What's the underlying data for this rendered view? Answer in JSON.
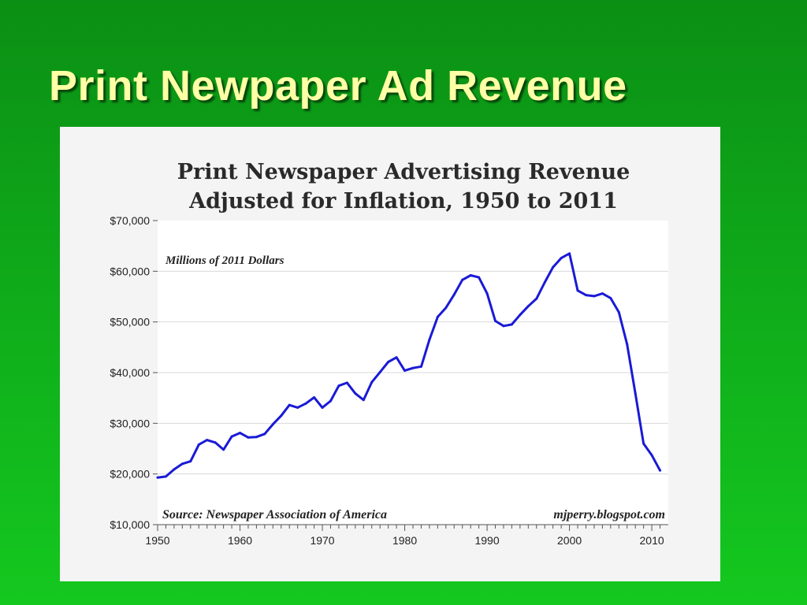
{
  "slide": {
    "title": "Print Newpaper Ad Revenue",
    "background": "#0fa91a",
    "title_color": "#ffffa6"
  },
  "chart_data": {
    "type": "line",
    "title": "Print Newspaper Advertising Revenue",
    "subtitle": "Adjusted for Inflation, 1950 to 2011",
    "units_note": "Millions of 2011 Dollars",
    "source": "Source: Newspaper Association of America",
    "credit": "mjperry.blogspot.com",
    "xlim": [
      1950,
      2012
    ],
    "ylim": [
      10000,
      70000
    ],
    "x_ticks": [
      "1950",
      "1960",
      "1970",
      "1980",
      "1990",
      "2000",
      "2010"
    ],
    "y_ticks": [
      "$70,000",
      "$60,000",
      "$50,000",
      "$40,000",
      "$30,000",
      "$20,000",
      "$10,000"
    ],
    "grid": true,
    "line_color": "#1a1ad6",
    "series": [
      {
        "x": [
          1950,
          1951,
          1952,
          1953,
          1954,
          1955,
          1956,
          1957,
          1958,
          1959,
          1960,
          1961,
          1962,
          1963,
          1964,
          1965,
          1966,
          1967,
          1968,
          1969,
          1970,
          1971,
          1972,
          1973,
          1974,
          1975,
          1976,
          1977,
          1978,
          1979,
          1980,
          1981,
          1982,
          1983,
          1984,
          1985,
          1986,
          1987,
          1988,
          1989,
          1990,
          1991,
          1992,
          1993,
          1994,
          1995,
          1996,
          1997,
          1998,
          1999,
          2000,
          2001,
          2002,
          2003,
          2004,
          2005,
          2006,
          2007,
          2008,
          2009,
          2010,
          2011
        ],
        "values": [
          19300,
          19500,
          20900,
          22000,
          22500,
          25800,
          26700,
          26200,
          24800,
          27400,
          28100,
          27200,
          27300,
          27900,
          29800,
          31500,
          33600,
          33100,
          33900,
          35100,
          33100,
          34400,
          37400,
          38000,
          35900,
          34600,
          38100,
          40100,
          42100,
          43000,
          40400,
          40900,
          41200,
          46500,
          51000,
          52800,
          55400,
          58300,
          59200,
          58800,
          55600,
          50200,
          49200,
          49500,
          51400,
          53100,
          54600,
          57800,
          60800,
          62600,
          63500,
          56200,
          55300,
          55100,
          55600,
          54700,
          51900,
          45600,
          35900,
          26000,
          23700,
          20700
        ]
      }
    ]
  }
}
